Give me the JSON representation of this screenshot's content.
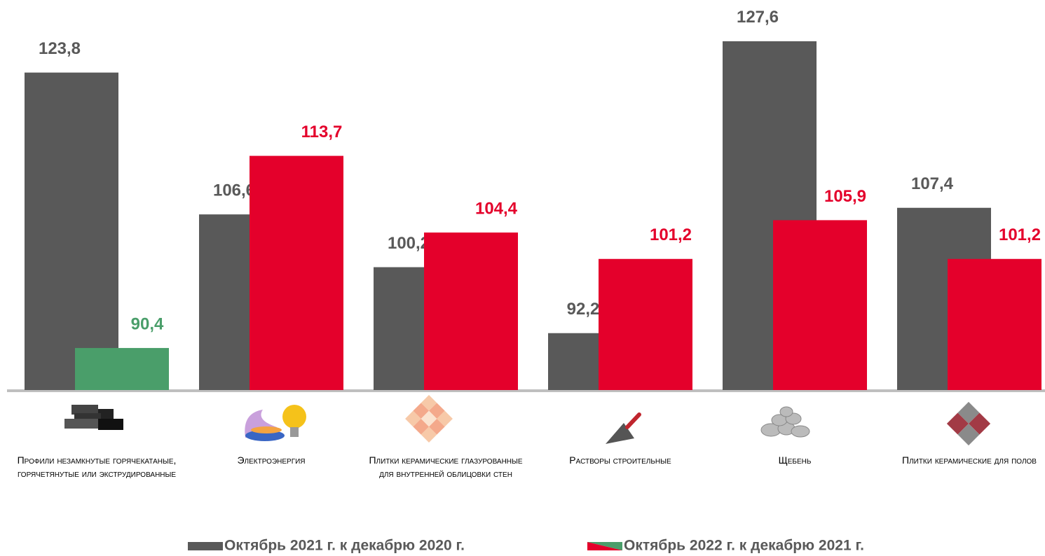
{
  "chart_data": {
    "type": "bar",
    "categories": [
      "Профили незамкнутые горячекатаные, горячетянутые или экструдированные",
      "Электроэнергия",
      "Плитки керамические глазурованные для внутренней облицовки стен",
      "Растворы строительные",
      "Щебень",
      "Плитки керамические для полов"
    ],
    "series": [
      {
        "name": "Октябрь 2021 г. к декабрю 2020 г.",
        "color": "#595959",
        "values": [
          123.8,
          106.6,
          100.2,
          92.2,
          127.6,
          107.4
        ],
        "value_labels": [
          "123,8",
          "106,6",
          "100,2",
          "92,2",
          "127,6",
          "107,4"
        ]
      },
      {
        "name": "Октябрь 2022 г. к декабрю 2021 г.",
        "color": "#e4002b",
        "colors": [
          "#4a9e6a",
          "#e4002b",
          "#e4002b",
          "#e4002b",
          "#e4002b",
          "#e4002b"
        ],
        "values": [
          90.4,
          113.7,
          104.4,
          101.2,
          105.9,
          101.2
        ],
        "value_labels": [
          "90,4",
          "113,7",
          "104,4",
          "101,2",
          "105,9",
          "101,2"
        ]
      }
    ],
    "ylim": [
      85.3,
      132.6
    ]
  }
}
